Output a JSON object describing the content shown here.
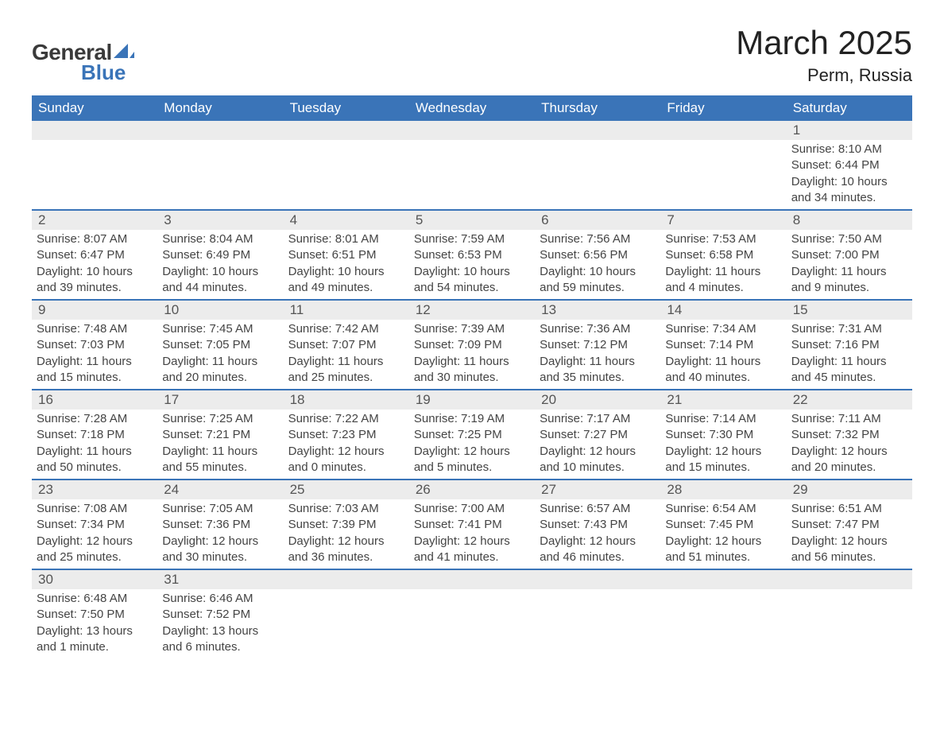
{
  "logo": {
    "text1": "General",
    "text2": "Blue",
    "shape_color": "#3a74b8"
  },
  "title": "March 2025",
  "location": "Perm, Russia",
  "header_bg": "#3a74b8",
  "header_fg": "#ffffff",
  "daynum_bg": "#ececec",
  "text_color": "#444444",
  "days_of_week": [
    "Sunday",
    "Monday",
    "Tuesday",
    "Wednesday",
    "Thursday",
    "Friday",
    "Saturday"
  ],
  "weeks": [
    [
      null,
      null,
      null,
      null,
      null,
      null,
      {
        "n": "1",
        "sr": "8:10 AM",
        "ss": "6:44 PM",
        "dl": "10 hours and 34 minutes."
      }
    ],
    [
      {
        "n": "2",
        "sr": "8:07 AM",
        "ss": "6:47 PM",
        "dl": "10 hours and 39 minutes."
      },
      {
        "n": "3",
        "sr": "8:04 AM",
        "ss": "6:49 PM",
        "dl": "10 hours and 44 minutes."
      },
      {
        "n": "4",
        "sr": "8:01 AM",
        "ss": "6:51 PM",
        "dl": "10 hours and 49 minutes."
      },
      {
        "n": "5",
        "sr": "7:59 AM",
        "ss": "6:53 PM",
        "dl": "10 hours and 54 minutes."
      },
      {
        "n": "6",
        "sr": "7:56 AM",
        "ss": "6:56 PM",
        "dl": "10 hours and 59 minutes."
      },
      {
        "n": "7",
        "sr": "7:53 AM",
        "ss": "6:58 PM",
        "dl": "11 hours and 4 minutes."
      },
      {
        "n": "8",
        "sr": "7:50 AM",
        "ss": "7:00 PM",
        "dl": "11 hours and 9 minutes."
      }
    ],
    [
      {
        "n": "9",
        "sr": "7:48 AM",
        "ss": "7:03 PM",
        "dl": "11 hours and 15 minutes."
      },
      {
        "n": "10",
        "sr": "7:45 AM",
        "ss": "7:05 PM",
        "dl": "11 hours and 20 minutes."
      },
      {
        "n": "11",
        "sr": "7:42 AM",
        "ss": "7:07 PM",
        "dl": "11 hours and 25 minutes."
      },
      {
        "n": "12",
        "sr": "7:39 AM",
        "ss": "7:09 PM",
        "dl": "11 hours and 30 minutes."
      },
      {
        "n": "13",
        "sr": "7:36 AM",
        "ss": "7:12 PM",
        "dl": "11 hours and 35 minutes."
      },
      {
        "n": "14",
        "sr": "7:34 AM",
        "ss": "7:14 PM",
        "dl": "11 hours and 40 minutes."
      },
      {
        "n": "15",
        "sr": "7:31 AM",
        "ss": "7:16 PM",
        "dl": "11 hours and 45 minutes."
      }
    ],
    [
      {
        "n": "16",
        "sr": "7:28 AM",
        "ss": "7:18 PM",
        "dl": "11 hours and 50 minutes."
      },
      {
        "n": "17",
        "sr": "7:25 AM",
        "ss": "7:21 PM",
        "dl": "11 hours and 55 minutes."
      },
      {
        "n": "18",
        "sr": "7:22 AM",
        "ss": "7:23 PM",
        "dl": "12 hours and 0 minutes."
      },
      {
        "n": "19",
        "sr": "7:19 AM",
        "ss": "7:25 PM",
        "dl": "12 hours and 5 minutes."
      },
      {
        "n": "20",
        "sr": "7:17 AM",
        "ss": "7:27 PM",
        "dl": "12 hours and 10 minutes."
      },
      {
        "n": "21",
        "sr": "7:14 AM",
        "ss": "7:30 PM",
        "dl": "12 hours and 15 minutes."
      },
      {
        "n": "22",
        "sr": "7:11 AM",
        "ss": "7:32 PM",
        "dl": "12 hours and 20 minutes."
      }
    ],
    [
      {
        "n": "23",
        "sr": "7:08 AM",
        "ss": "7:34 PM",
        "dl": "12 hours and 25 minutes."
      },
      {
        "n": "24",
        "sr": "7:05 AM",
        "ss": "7:36 PM",
        "dl": "12 hours and 30 minutes."
      },
      {
        "n": "25",
        "sr": "7:03 AM",
        "ss": "7:39 PM",
        "dl": "12 hours and 36 minutes."
      },
      {
        "n": "26",
        "sr": "7:00 AM",
        "ss": "7:41 PM",
        "dl": "12 hours and 41 minutes."
      },
      {
        "n": "27",
        "sr": "6:57 AM",
        "ss": "7:43 PM",
        "dl": "12 hours and 46 minutes."
      },
      {
        "n": "28",
        "sr": "6:54 AM",
        "ss": "7:45 PM",
        "dl": "12 hours and 51 minutes."
      },
      {
        "n": "29",
        "sr": "6:51 AM",
        "ss": "7:47 PM",
        "dl": "12 hours and 56 minutes."
      }
    ],
    [
      {
        "n": "30",
        "sr": "6:48 AM",
        "ss": "7:50 PM",
        "dl": "13 hours and 1 minute."
      },
      {
        "n": "31",
        "sr": "6:46 AM",
        "ss": "7:52 PM",
        "dl": "13 hours and 6 minutes."
      },
      null,
      null,
      null,
      null,
      null
    ]
  ],
  "labels": {
    "sunrise": "Sunrise: ",
    "sunset": "Sunset: ",
    "daylight": "Daylight: "
  }
}
